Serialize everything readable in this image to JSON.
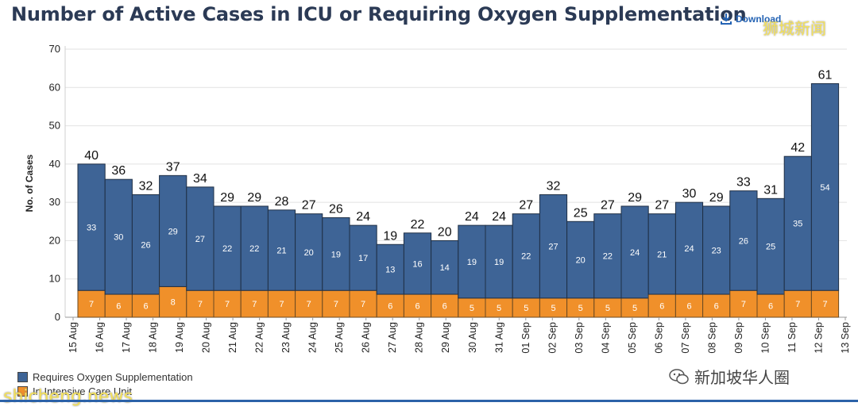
{
  "page": {
    "title": "Number of Active Cases in ICU or Requiring Oxygen Supplementation",
    "download_label": "Download",
    "watermark_top": "狮城新闻",
    "watermark_bottom": "shicheng.news",
    "watermark_right": "新加坡华人圈",
    "download_icon": "download-icon",
    "wechat_icon": "wechat-icon"
  },
  "chart_data": {
    "type": "bar",
    "stacked": true,
    "ylabel": "No. of Cases",
    "xlabel": "",
    "ylim": [
      0,
      70
    ],
    "yticks": [
      0,
      10,
      20,
      30,
      40,
      50,
      60,
      70
    ],
    "grid": true,
    "legend_position": "bottom-left",
    "categories": [
      "16 Aug",
      "17 Aug",
      "18 Aug",
      "19 Aug",
      "20 Aug",
      "21 Aug",
      "22 Aug",
      "23 Aug",
      "24 Aug",
      "25 Aug",
      "26 Aug",
      "27 Aug",
      "28 Aug",
      "29 Aug",
      "30 Aug",
      "31 Aug",
      "01 Sep",
      "02 Sep",
      "03 Sep",
      "04 Sep",
      "05 Sep",
      "06 Sep",
      "07 Sep",
      "08 Sep",
      "09 Sep",
      "10 Sep",
      "11 Sep",
      "12 Sep"
    ],
    "tick_labels": [
      "15 Aug",
      "16 Aug",
      "17 Aug",
      "18 Aug",
      "19 Aug",
      "20 Aug",
      "21 Aug",
      "22 Aug",
      "23 Aug",
      "24 Aug",
      "25 Aug",
      "26 Aug",
      "27 Aug",
      "28 Aug",
      "29 Aug",
      "30 Aug",
      "31 Aug",
      "01 Sep",
      "02 Sep",
      "03 Sep",
      "04 Sep",
      "05 Sep",
      "06 Sep",
      "07 Sep",
      "08 Sep",
      "09 Sep",
      "10 Sep",
      "11 Sep",
      "12 Sep",
      "13 Sep"
    ],
    "series": [
      {
        "name": "In Intensive Care Unit",
        "color": "#f0902a",
        "values": [
          7,
          6,
          6,
          8,
          7,
          7,
          7,
          7,
          7,
          7,
          7,
          6,
          6,
          6,
          5,
          5,
          5,
          5,
          5,
          5,
          5,
          6,
          6,
          6,
          7,
          6,
          7,
          7
        ]
      },
      {
        "name": "Requires Oxygen Supplementation",
        "color": "#3e6496",
        "values": [
          33,
          30,
          26,
          29,
          27,
          22,
          22,
          21,
          20,
          19,
          17,
          13,
          16,
          14,
          19,
          19,
          22,
          27,
          20,
          22,
          24,
          21,
          24,
          23,
          26,
          25,
          35,
          54
        ]
      }
    ],
    "totals": [
      40,
      36,
      32,
      37,
      34,
      29,
      29,
      28,
      27,
      26,
      24,
      19,
      22,
      20,
      24,
      24,
      27,
      32,
      25,
      27,
      29,
      27,
      30,
      29,
      33,
      31,
      42,
      61
    ],
    "legend": [
      "Requires Oxygen Supplementation",
      "In Intensive Care Unit"
    ]
  }
}
